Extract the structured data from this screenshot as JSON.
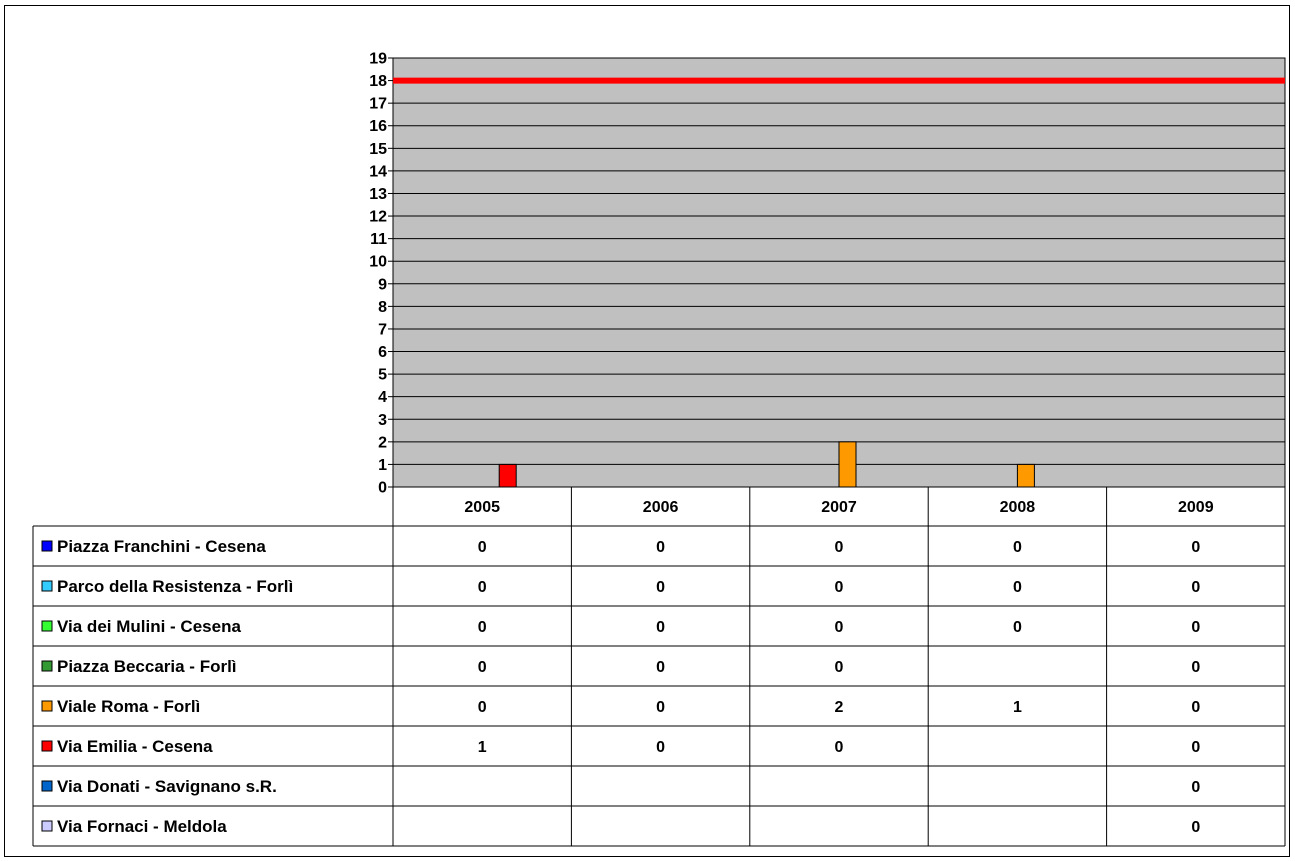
{
  "chart_data": {
    "type": "bar",
    "title": "",
    "xlabel": "",
    "ylabel": "",
    "ylim": [
      0,
      19
    ],
    "yticks": [
      "0",
      "1",
      "2",
      "3",
      "4",
      "5",
      "6",
      "7",
      "8",
      "9",
      "10",
      "11",
      "12",
      "13",
      "14",
      "15",
      "16",
      "17",
      "18",
      "19"
    ],
    "grid": true,
    "legend": "table-left",
    "plot_background": "#c0c0c0",
    "threshold": {
      "value": 18,
      "color": "#ff0000"
    },
    "categories": [
      "2005",
      "2006",
      "2007",
      "2008",
      "2009"
    ],
    "series": [
      {
        "name": "Piazza Franchini - Cesena",
        "color": "#0000ff",
        "values": [
          0,
          0,
          0,
          0,
          0
        ]
      },
      {
        "name": "Parco della Resistenza - Forlì",
        "color": "#33ccff",
        "values": [
          0,
          0,
          0,
          0,
          0
        ]
      },
      {
        "name": "Via dei Mulini - Cesena",
        "color": "#33ff33",
        "values": [
          0,
          0,
          0,
          0,
          0
        ]
      },
      {
        "name": "Piazza Beccaria - Forlì",
        "color": "#339933",
        "values": [
          0,
          0,
          0,
          null,
          0
        ]
      },
      {
        "name": "Viale Roma - Forlì",
        "color": "#ff9900",
        "values": [
          0,
          0,
          2,
          1,
          0
        ]
      },
      {
        "name": "Via Emilia - Cesena",
        "color": "#ff0000",
        "values": [
          1,
          0,
          0,
          null,
          0
        ]
      },
      {
        "name": "Via Donati - Savignano s.R.",
        "color": "#0066cc",
        "values": [
          null,
          null,
          null,
          null,
          0
        ]
      },
      {
        "name": "Via Fornaci - Meldola",
        "color": "#ccccff",
        "values": [
          null,
          null,
          null,
          null,
          0
        ]
      }
    ]
  }
}
